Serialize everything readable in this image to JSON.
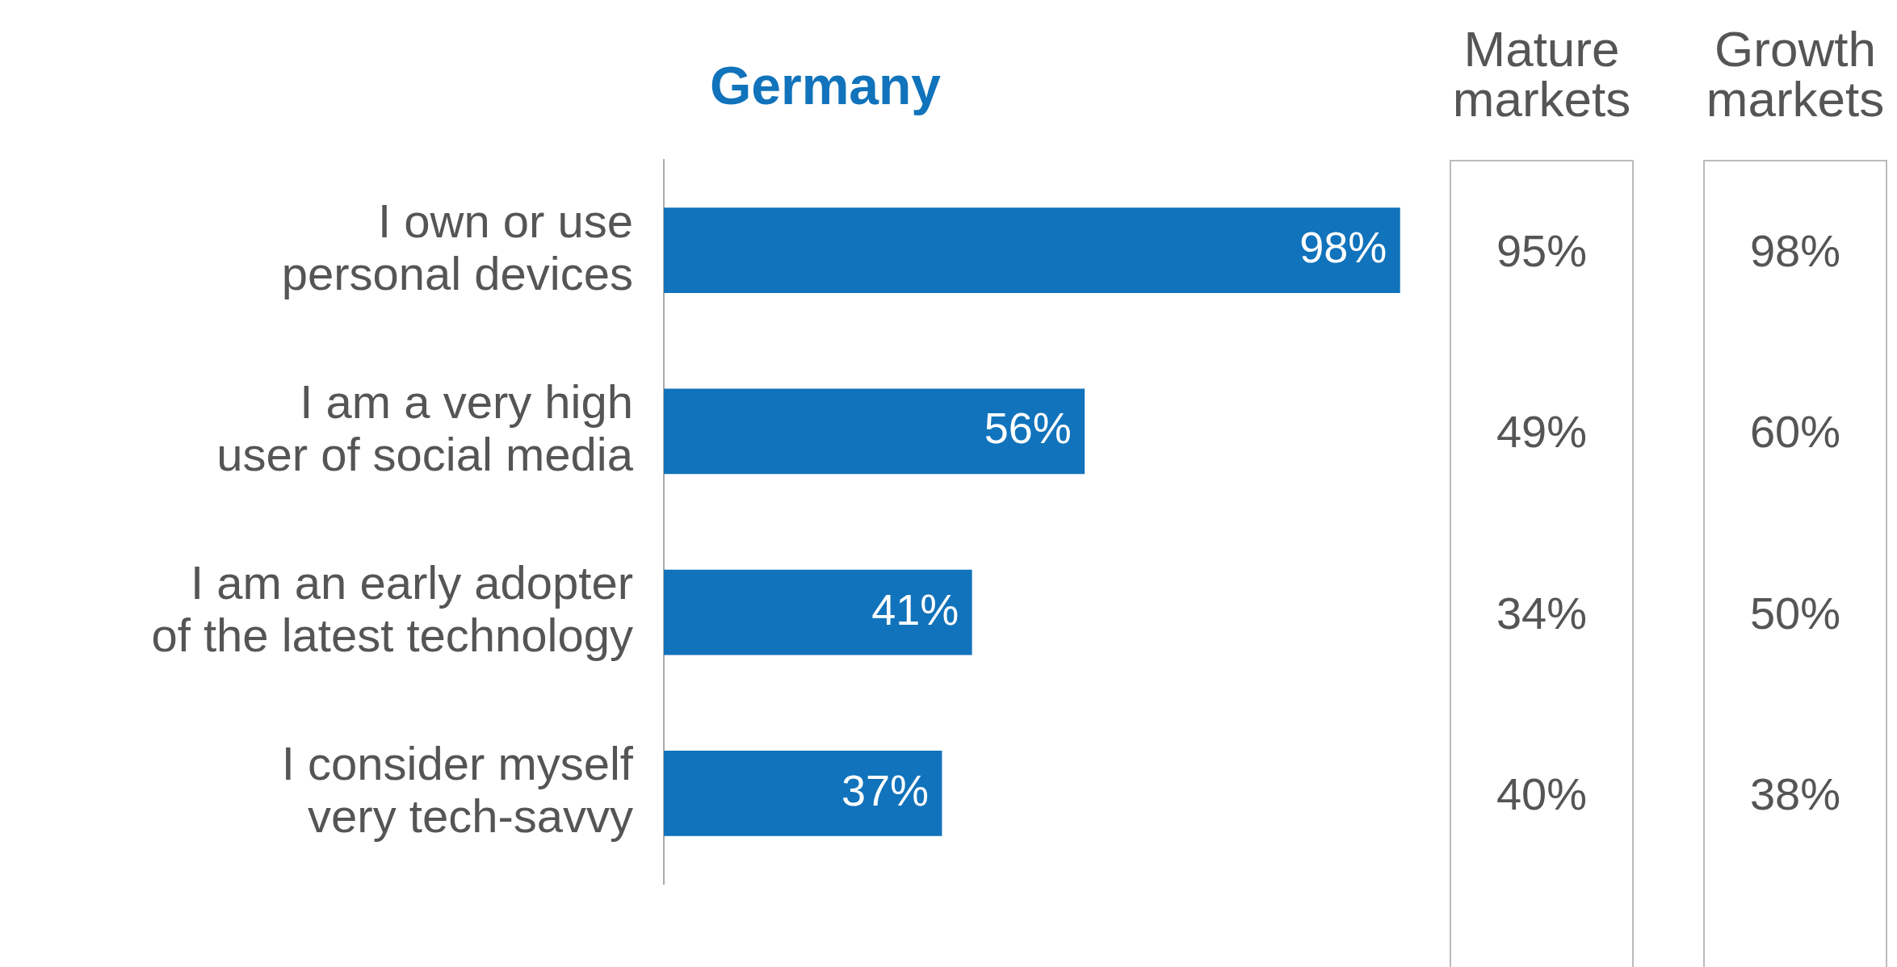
{
  "chart_data": [
    {
      "type": "bar",
      "orientation": "horizontal",
      "title": "Germany",
      "categories": [
        "I own or use personal devices",
        "I am a very high user of social media",
        "I am an early adopter of the latest technology",
        "I consider myself very tech-savvy"
      ],
      "values": [
        98,
        56,
        41,
        37
      ],
      "value_labels": [
        "98%",
        "56%",
        "41%",
        "37%"
      ],
      "color": "#1173bb",
      "tick_labels": "y"
    },
    {
      "type": "other",
      "title": "Mature markets",
      "values": [
        95,
        49,
        34,
        40
      ],
      "value_labels": [
        "95%",
        "49%",
        "34%",
        "40%"
      ]
    },
    {
      "type": "other",
      "title": "Growth markets",
      "values": [
        98,
        60,
        50,
        38
      ],
      "value_labels": [
        "98%",
        "60%",
        "50%",
        "38%"
      ]
    }
  ]
}
